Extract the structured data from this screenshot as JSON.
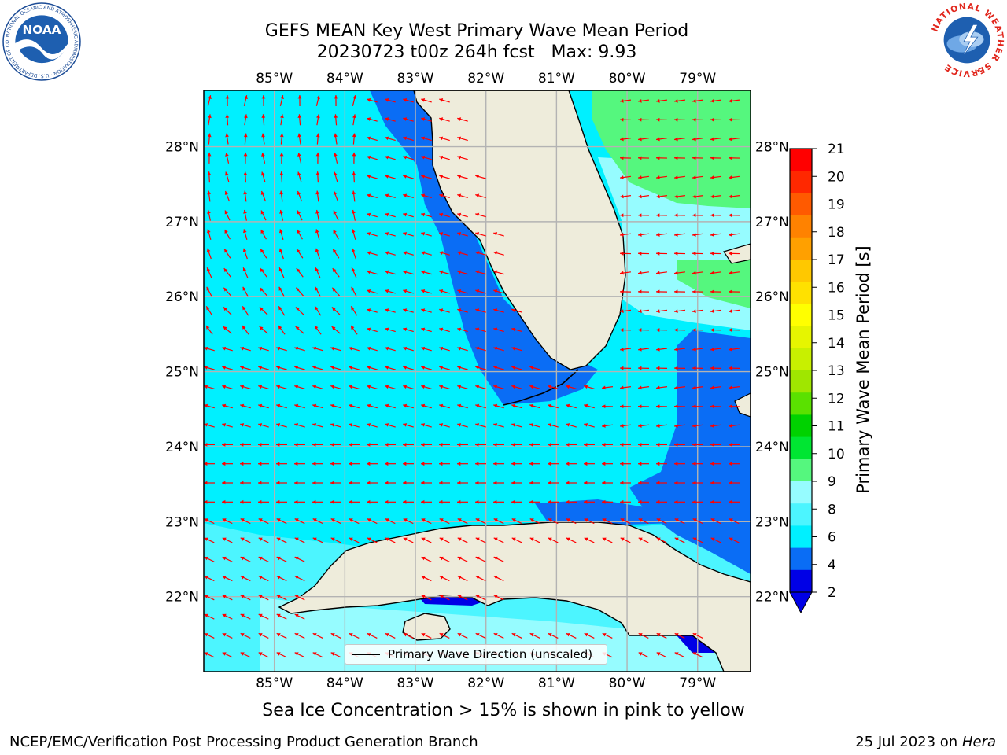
{
  "header": {
    "title_line1": "GEFS MEAN Key West Primary Wave Mean Period",
    "title_line2": "20230723 t00z 264h fcst   Max: 9.93"
  },
  "logos": {
    "left": "NOAA",
    "left_ring_text": "NATIONAL OCEANIC AND ATMOSPHERIC ADMINISTRATION · U.S. DEPARTMENT OF COMMERCE",
    "right_ring_text": "NATIONAL WEATHER SERVICE"
  },
  "map": {
    "lon_labels": [
      "85°W",
      "84°W",
      "83°W",
      "82°W",
      "81°W",
      "80°W",
      "79°W"
    ],
    "lat_labels": [
      "28°N",
      "27°N",
      "26°N",
      "25°N",
      "24°N",
      "23°N",
      "22°N"
    ],
    "extent": {
      "lon_min": -86.0,
      "lon_max": -78.25,
      "lat_min": 21.0,
      "lat_max": 28.75
    },
    "colors": {
      "land": "#eeecdb",
      "arrow": "#ff0000",
      "grid": "#b3b3b3",
      "coast": "#000000"
    },
    "arrow_field_note": "red arrows: primary wave direction"
  },
  "colorbar": {
    "title": "Primary Wave Mean Period [s]",
    "ticks": [
      "21",
      "20",
      "19",
      "18",
      "17",
      "16",
      "15",
      "14",
      "13",
      "12",
      "11",
      "10",
      "9",
      "8",
      "6",
      "4",
      "2"
    ],
    "colors": [
      "#0000e6",
      "#0a6df5",
      "#00f0ff",
      "#4cf5ff",
      "#96fcff",
      "#55f77e",
      "#00e632",
      "#00d200",
      "#5ae100",
      "#a0e600",
      "#c8f000",
      "#e6f500",
      "#ffff00",
      "#ffe100",
      "#ffc800",
      "#ffa000",
      "#ff8200",
      "#ff5a00",
      "#ff2800",
      "#ff0000"
    ]
  },
  "legend": {
    "label": "Primary Wave Direction (unscaled)"
  },
  "caption": "Sea Ice Concentration > 15% is shown in pink to yellow",
  "footer": {
    "left": "NCEP/EMC/Verification Post Processing Product Generation Branch",
    "date": "25 Jul 2023 on ",
    "machine": "Hera"
  }
}
